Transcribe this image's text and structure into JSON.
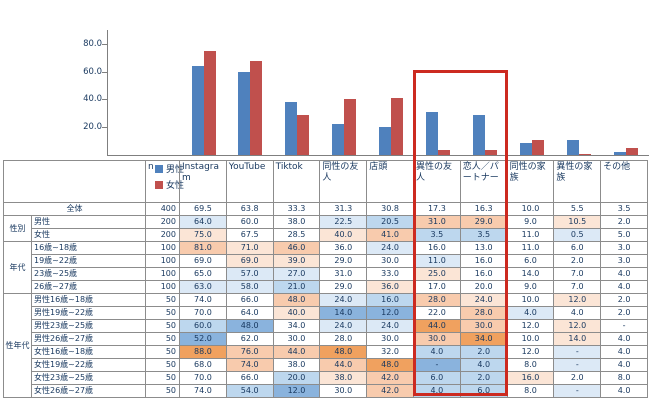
{
  "chart_data": {
    "type": "bar",
    "title": "",
    "categories": [
      "Instagram",
      "YouTube",
      "Tiktok",
      "同性の友人",
      "店頭",
      "異性の友人",
      "恋人／パートナー",
      "同性の家族",
      "異性の家族",
      "その他"
    ],
    "series": [
      {
        "name": "男性",
        "color": "#4f81bd",
        "values": [
          64.0,
          60.0,
          38.0,
          22.5,
          20.5,
          31.0,
          29.0,
          9.0,
          10.5,
          2.0
        ]
      },
      {
        "name": "女性",
        "color": "#c0504d",
        "values": [
          75.0,
          67.5,
          28.5,
          40.0,
          41.0,
          3.5,
          3.5,
          11.0,
          0.5,
          5.0
        ]
      }
    ],
    "y_ticks": [
      20.0,
      40.0,
      60.0,
      80.0
    ],
    "ylim": [
      0,
      90
    ],
    "grid": false,
    "legend_position": "left-below-chart",
    "highlight_box_columns": [
      "異性の友人",
      "恋人／パートナー"
    ]
  },
  "table": {
    "n_header": "n",
    "columns": [
      "Instagram",
      "YouTube",
      "Tiktok",
      "同性の友人",
      "店頭",
      "異性の友人",
      "恋人／パートナー",
      "同性の家族",
      "異性の家族",
      "その他"
    ],
    "rows": [
      {
        "type": "total",
        "label": "全体",
        "n": "400",
        "values": [
          "69.5",
          "63.8",
          "33.3",
          "31.3",
          "30.8",
          "17.3",
          "16.3",
          "10.0",
          "5.5",
          "3.5"
        ]
      },
      {
        "group": "性別",
        "span": 2,
        "label": "男性",
        "n": "200",
        "values": [
          "64.0",
          "60.0",
          "38.0",
          "22.5",
          "20.5",
          "31.0",
          "29.0",
          "9.0",
          "10.5",
          "2.0"
        ]
      },
      {
        "label": "女性",
        "n": "200",
        "values": [
          "75.0",
          "67.5",
          "28.5",
          "40.0",
          "41.0",
          "3.5",
          "3.5",
          "11.0",
          "0.5",
          "5.0"
        ]
      },
      {
        "group": "年代",
        "span": 4,
        "label": "16歳~18歳",
        "n": "100",
        "values": [
          "81.0",
          "71.0",
          "46.0",
          "36.0",
          "24.0",
          "16.0",
          "13.0",
          "11.0",
          "6.0",
          "3.0"
        ]
      },
      {
        "label": "19歳~22歳",
        "n": "100",
        "values": [
          "69.0",
          "69.0",
          "39.0",
          "29.0",
          "30.0",
          "11.0",
          "16.0",
          "6.0",
          "2.0",
          "3.0"
        ]
      },
      {
        "label": "23歳~25歳",
        "n": "100",
        "values": [
          "65.0",
          "57.0",
          "27.0",
          "31.0",
          "33.0",
          "25.0",
          "16.0",
          "14.0",
          "7.0",
          "4.0"
        ]
      },
      {
        "label": "26歳~27歳",
        "n": "100",
        "values": [
          "63.0",
          "58.0",
          "21.0",
          "29.0",
          "36.0",
          "17.0",
          "20.0",
          "9.0",
          "7.0",
          "4.0"
        ]
      },
      {
        "group": "性年代",
        "span": 8,
        "label": "男性16歳~18歳",
        "n": "50",
        "values": [
          "74.0",
          "66.0",
          "48.0",
          "24.0",
          "16.0",
          "28.0",
          "24.0",
          "10.0",
          "12.0",
          "2.0"
        ]
      },
      {
        "label": "男性19歳~22歳",
        "n": "50",
        "values": [
          "70.0",
          "64.0",
          "40.0",
          "14.0",
          "12.0",
          "22.0",
          "28.0",
          "4.0",
          "4.0",
          "2.0"
        ]
      },
      {
        "label": "男性23歳~25歳",
        "n": "50",
        "values": [
          "60.0",
          "48.0",
          "34.0",
          "24.0",
          "24.0",
          "44.0",
          "30.0",
          "12.0",
          "12.0",
          "-"
        ]
      },
      {
        "label": "男性26歳~27歳",
        "n": "50",
        "values": [
          "52.0",
          "62.0",
          "30.0",
          "28.0",
          "30.0",
          "30.0",
          "34.0",
          "10.0",
          "14.0",
          "4.0"
        ]
      },
      {
        "label": "女性16歳~18歳",
        "n": "50",
        "values": [
          "88.0",
          "76.0",
          "44.0",
          "48.0",
          "32.0",
          "4.0",
          "2.0",
          "12.0",
          "-",
          "4.0"
        ]
      },
      {
        "label": "女性19歳~22歳",
        "n": "50",
        "values": [
          "68.0",
          "74.0",
          "38.0",
          "44.0",
          "48.0",
          "-",
          "4.0",
          "8.0",
          "-",
          "4.0"
        ]
      },
      {
        "label": "女性23歳~25歳",
        "n": "50",
        "values": [
          "70.0",
          "66.0",
          "20.0",
          "38.0",
          "42.0",
          "6.0",
          "2.0",
          "16.0",
          "2.0",
          "8.0"
        ]
      },
      {
        "label": "女性26歳~27歳",
        "n": "50",
        "values": [
          "74.0",
          "54.0",
          "12.0",
          "30.0",
          "42.0",
          "4.0",
          "6.0",
          "8.0",
          "-",
          "4.0"
        ]
      }
    ]
  },
  "colors": {
    "male": "#4f81bd",
    "female": "#c0504d",
    "highlight_box": "#cc2a20",
    "text": "#17375e",
    "grid_border": "#8c8c8c",
    "orange_scale": [
      "#fbe5d6",
      "#f8cbad",
      "#f0a15f"
    ],
    "blue_scale": [
      "#dce9f6",
      "#bdd7ee",
      "#8ab3dd"
    ]
  }
}
